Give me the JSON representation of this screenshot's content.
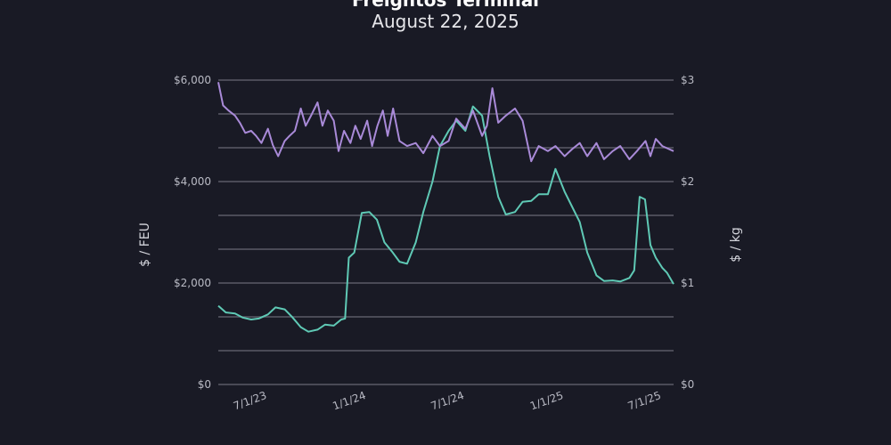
{
  "header": {
    "title": "Freightos Terminal",
    "subtitle": "August 22, 2025"
  },
  "chart_data": {
    "type": "line",
    "x_type": "date",
    "xlim": [
      "2023-05-01",
      "2025-08-22"
    ],
    "x_ticks": [
      {
        "date": "2023-07-01",
        "label": "7/1/23"
      },
      {
        "date": "2024-01-01",
        "label": "1/1/24"
      },
      {
        "date": "2024-07-01",
        "label": "7/1/24"
      },
      {
        "date": "2025-01-01",
        "label": "1/1/25"
      },
      {
        "date": "2025-07-01",
        "label": "7/1/25"
      }
    ],
    "y_left": {
      "label": "$ / FEU",
      "ylim": [
        0,
        6000
      ],
      "ticks": [
        {
          "value": 0,
          "label": "$0"
        },
        {
          "value": 2000,
          "label": "$2,000"
        },
        {
          "value": 4000,
          "label": "$4,000"
        },
        {
          "value": 6000,
          "label": "$6,000"
        }
      ]
    },
    "y_right": {
      "label": "$ / kg",
      "ylim": [
        0,
        3
      ],
      "ticks": [
        {
          "value": 0,
          "label": "$0"
        },
        {
          "value": 1,
          "label": "$1"
        },
        {
          "value": 2,
          "label": "$2"
        },
        {
          "value": 3,
          "label": "$3"
        }
      ]
    },
    "grid": {
      "horizontal": true,
      "values": [
        0,
        666.7,
        1333.3,
        2000,
        2666.7,
        3333.3,
        4000,
        4666.7,
        5333.3,
        6000
      ]
    },
    "colors": {
      "left_series": "#5fc9b5",
      "right_series": "#a98ad8",
      "grid": "#5a5b66"
    },
    "series": [
      {
        "axis": "left",
        "color": "#5fc9b5",
        "points": [
          [
            "2023-05-01",
            1550
          ],
          [
            "2023-05-15",
            1420
          ],
          [
            "2023-06-01",
            1400
          ],
          [
            "2023-06-15",
            1320
          ],
          [
            "2023-07-01",
            1280
          ],
          [
            "2023-07-15",
            1300
          ],
          [
            "2023-08-01",
            1380
          ],
          [
            "2023-08-15",
            1520
          ],
          [
            "2023-09-01",
            1480
          ],
          [
            "2023-09-15",
            1330
          ],
          [
            "2023-10-01",
            1130
          ],
          [
            "2023-10-15",
            1040
          ],
          [
            "2023-11-01",
            1080
          ],
          [
            "2023-11-15",
            1180
          ],
          [
            "2023-12-01",
            1160
          ],
          [
            "2023-12-15",
            1280
          ],
          [
            "2023-12-22",
            1300
          ],
          [
            "2023-12-29",
            2500
          ],
          [
            "2024-01-08",
            2600
          ],
          [
            "2024-01-22",
            3380
          ],
          [
            "2024-02-05",
            3400
          ],
          [
            "2024-02-19",
            3250
          ],
          [
            "2024-03-04",
            2800
          ],
          [
            "2024-03-18",
            2620
          ],
          [
            "2024-04-01",
            2420
          ],
          [
            "2024-04-15",
            2380
          ],
          [
            "2024-05-01",
            2800
          ],
          [
            "2024-05-15",
            3400
          ],
          [
            "2024-06-01",
            4000
          ],
          [
            "2024-06-15",
            4700
          ],
          [
            "2024-07-01",
            5000
          ],
          [
            "2024-07-15",
            5200
          ],
          [
            "2024-08-01",
            5000
          ],
          [
            "2024-08-15",
            5480
          ],
          [
            "2024-09-01",
            5300
          ],
          [
            "2024-09-15",
            4500
          ],
          [
            "2024-10-01",
            3700
          ],
          [
            "2024-10-15",
            3350
          ],
          [
            "2024-11-01",
            3400
          ],
          [
            "2024-11-15",
            3600
          ],
          [
            "2024-12-01",
            3620
          ],
          [
            "2024-12-15",
            3750
          ],
          [
            "2025-01-01",
            3750
          ],
          [
            "2025-01-15",
            4250
          ],
          [
            "2025-02-01",
            3800
          ],
          [
            "2025-02-15",
            3500
          ],
          [
            "2025-03-01",
            3200
          ],
          [
            "2025-03-15",
            2600
          ],
          [
            "2025-04-01",
            2150
          ],
          [
            "2025-04-15",
            2040
          ],
          [
            "2025-05-01",
            2050
          ],
          [
            "2025-05-15",
            2030
          ],
          [
            "2025-06-01",
            2100
          ],
          [
            "2025-06-10",
            2250
          ],
          [
            "2025-06-20",
            3700
          ],
          [
            "2025-06-30",
            3650
          ],
          [
            "2025-07-10",
            2750
          ],
          [
            "2025-07-20",
            2500
          ],
          [
            "2025-08-01",
            2300
          ],
          [
            "2025-08-10",
            2200
          ],
          [
            "2025-08-22",
            1980
          ]
        ]
      },
      {
        "axis": "right",
        "color": "#a98ad8",
        "points": [
          [
            "2023-05-01",
            2.98
          ],
          [
            "2023-05-10",
            2.75
          ],
          [
            "2023-05-20",
            2.7
          ],
          [
            "2023-06-01",
            2.65
          ],
          [
            "2023-06-10",
            2.58
          ],
          [
            "2023-06-20",
            2.48
          ],
          [
            "2023-07-01",
            2.5
          ],
          [
            "2023-07-10",
            2.45
          ],
          [
            "2023-07-20",
            2.38
          ],
          [
            "2023-08-01",
            2.52
          ],
          [
            "2023-08-10",
            2.36
          ],
          [
            "2023-08-20",
            2.25
          ],
          [
            "2023-09-01",
            2.4
          ],
          [
            "2023-09-10",
            2.45
          ],
          [
            "2023-09-20",
            2.5
          ],
          [
            "2023-10-01",
            2.72
          ],
          [
            "2023-10-10",
            2.55
          ],
          [
            "2023-10-20",
            2.65
          ],
          [
            "2023-11-01",
            2.78
          ],
          [
            "2023-11-10",
            2.55
          ],
          [
            "2023-11-20",
            2.7
          ],
          [
            "2023-12-01",
            2.6
          ],
          [
            "2023-12-10",
            2.3
          ],
          [
            "2023-12-20",
            2.5
          ],
          [
            "2024-01-01",
            2.38
          ],
          [
            "2024-01-10",
            2.55
          ],
          [
            "2024-01-20",
            2.42
          ],
          [
            "2024-02-01",
            2.6
          ],
          [
            "2024-02-10",
            2.35
          ],
          [
            "2024-02-20",
            2.55
          ],
          [
            "2024-03-01",
            2.7
          ],
          [
            "2024-03-10",
            2.45
          ],
          [
            "2024-03-20",
            2.72
          ],
          [
            "2024-04-01",
            2.4
          ],
          [
            "2024-04-15",
            2.35
          ],
          [
            "2024-05-01",
            2.38
          ],
          [
            "2024-05-15",
            2.28
          ],
          [
            "2024-06-01",
            2.45
          ],
          [
            "2024-06-15",
            2.35
          ],
          [
            "2024-07-01",
            2.4
          ],
          [
            "2024-07-15",
            2.62
          ],
          [
            "2024-08-01",
            2.52
          ],
          [
            "2024-08-15",
            2.7
          ],
          [
            "2024-09-01",
            2.45
          ],
          [
            "2024-09-10",
            2.55
          ],
          [
            "2024-09-20",
            2.92
          ],
          [
            "2024-10-01",
            2.58
          ],
          [
            "2024-10-15",
            2.65
          ],
          [
            "2024-11-01",
            2.72
          ],
          [
            "2024-11-15",
            2.6
          ],
          [
            "2024-12-01",
            2.2
          ],
          [
            "2024-12-15",
            2.35
          ],
          [
            "2025-01-01",
            2.3
          ],
          [
            "2025-01-15",
            2.35
          ],
          [
            "2025-02-01",
            2.25
          ],
          [
            "2025-02-15",
            2.32
          ],
          [
            "2025-03-01",
            2.38
          ],
          [
            "2025-03-15",
            2.25
          ],
          [
            "2025-04-01",
            2.38
          ],
          [
            "2025-04-15",
            2.22
          ],
          [
            "2025-05-01",
            2.3
          ],
          [
            "2025-05-15",
            2.35
          ],
          [
            "2025-06-01",
            2.22
          ],
          [
            "2025-06-15",
            2.3
          ],
          [
            "2025-07-01",
            2.4
          ],
          [
            "2025-07-10",
            2.25
          ],
          [
            "2025-07-20",
            2.42
          ],
          [
            "2025-08-01",
            2.35
          ],
          [
            "2025-08-22",
            2.3
          ]
        ]
      }
    ]
  }
}
